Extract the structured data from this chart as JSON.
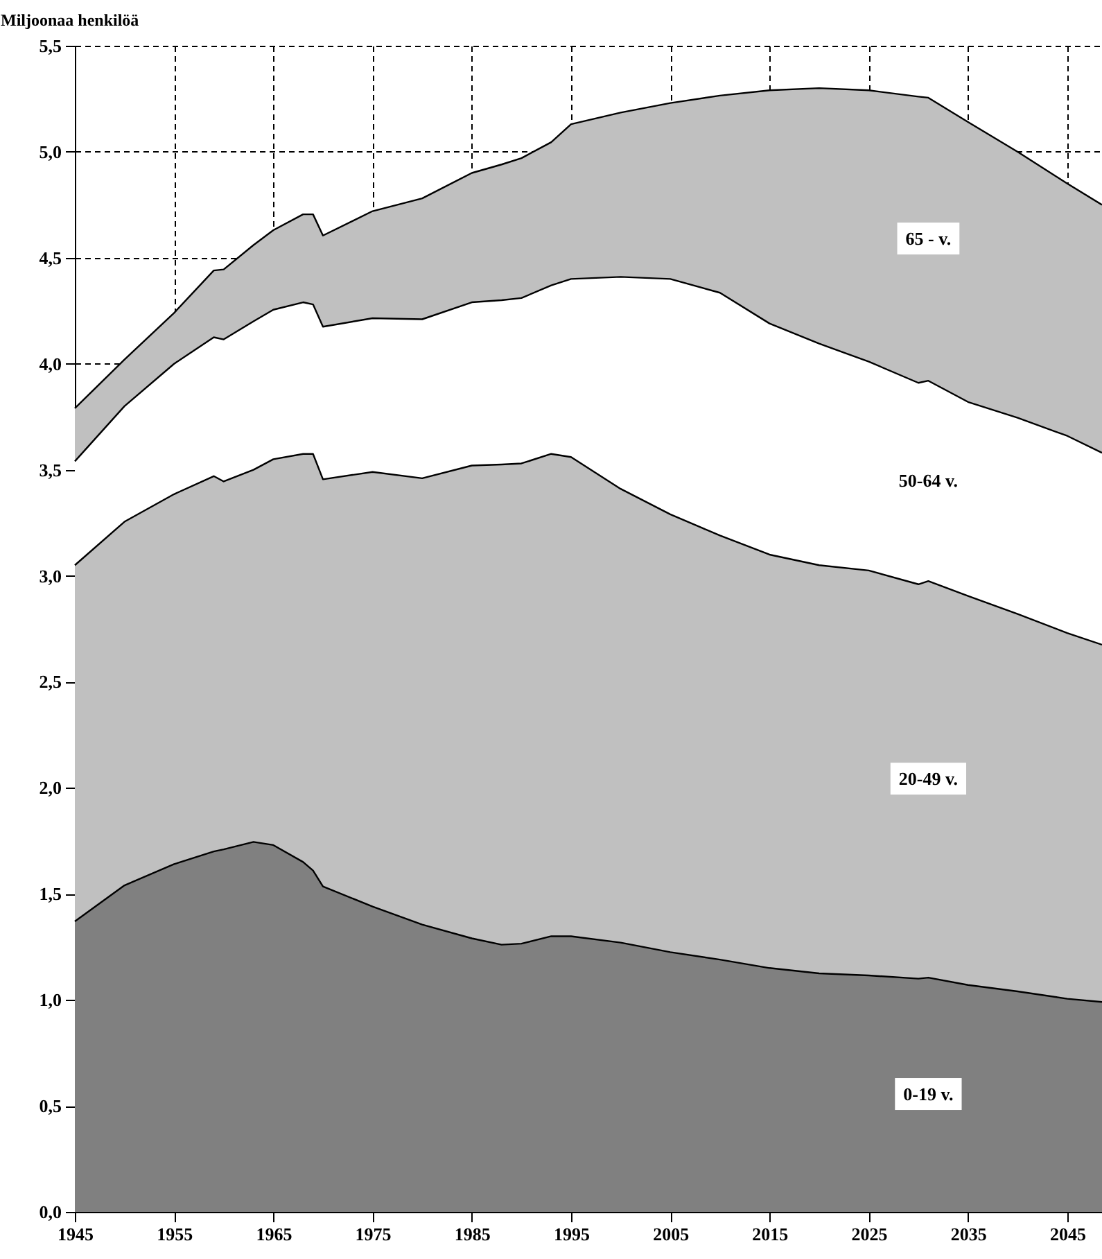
{
  "chart_data": {
    "type": "area",
    "stacked": true,
    "ylabel": "Miljoonaa henkilöä",
    "x": [
      1945,
      1950,
      1955,
      1959,
      1960,
      1963,
      1965,
      1968,
      1969,
      1970,
      1975,
      1980,
      1985,
      1988,
      1990,
      1993,
      1995,
      2000,
      2005,
      2010,
      2015,
      2020,
      2025,
      2030,
      2031,
      2035,
      2040,
      2045,
      2048.5
    ],
    "series": [
      {
        "name": "0-19 v.",
        "color": "#808080",
        "values": [
          1.37,
          1.54,
          1.64,
          1.7,
          1.71,
          1.745,
          1.73,
          1.65,
          1.61,
          1.535,
          1.44,
          1.355,
          1.29,
          1.26,
          1.265,
          1.3,
          1.3,
          1.27,
          1.225,
          1.19,
          1.15,
          1.125,
          1.115,
          1.1,
          1.105,
          1.07,
          1.04,
          1.005,
          0.99
        ]
      },
      {
        "name": "20-49 v.",
        "color": "#c0c0c0",
        "values": [
          1.68,
          1.715,
          1.745,
          1.77,
          1.735,
          1.755,
          1.82,
          1.925,
          1.965,
          1.92,
          2.05,
          2.105,
          2.23,
          2.265,
          2.265,
          2.275,
          2.26,
          2.14,
          2.065,
          2.0,
          1.95,
          1.925,
          1.91,
          1.86,
          1.87,
          1.835,
          1.78,
          1.725,
          1.685
        ]
      },
      {
        "name": "50-64 v.",
        "color": "#ffffff",
        "values": [
          0.49,
          0.545,
          0.615,
          0.655,
          0.67,
          0.7,
          0.705,
          0.715,
          0.705,
          0.72,
          0.725,
          0.75,
          0.77,
          0.775,
          0.78,
          0.795,
          0.84,
          1.0,
          1.11,
          1.145,
          1.09,
          1.045,
          0.985,
          0.95,
          0.945,
          0.915,
          0.925,
          0.93,
          0.905
        ]
      },
      {
        "name": "65 - v.",
        "color": "#c0c0c0",
        "values": [
          0.25,
          0.22,
          0.24,
          0.315,
          0.33,
          0.36,
          0.375,
          0.415,
          0.425,
          0.43,
          0.505,
          0.57,
          0.61,
          0.64,
          0.66,
          0.675,
          0.73,
          0.775,
          0.83,
          0.93,
          1.1,
          1.205,
          1.28,
          1.35,
          1.335,
          1.32,
          1.255,
          1.19,
          1.17
        ]
      }
    ],
    "xlim": [
      1945,
      2048.5
    ],
    "xticks": [
      1945,
      1955,
      1965,
      1975,
      1985,
      1995,
      2005,
      2015,
      2025,
      2035,
      2045
    ],
    "ylim": [
      0,
      5.5
    ],
    "yticks": [
      {
        "value": 0,
        "label": "0,0"
      },
      {
        "value": 0.5,
        "label": "0,5"
      },
      {
        "value": 1,
        "label": "1,0"
      },
      {
        "value": 1.5,
        "label": "1,5"
      },
      {
        "value": 2,
        "label": "2,0"
      },
      {
        "value": 2.5,
        "label": "2,5"
      },
      {
        "value": 3,
        "label": "3,0"
      },
      {
        "value": 3.5,
        "label": "3,5"
      },
      {
        "value": 4,
        "label": "4,0"
      },
      {
        "value": 4.5,
        "label": "4,5"
      },
      {
        "value": 5,
        "label": "5,0"
      },
      {
        "value": 5.5,
        "label": "5,5"
      }
    ],
    "grid": true
  }
}
